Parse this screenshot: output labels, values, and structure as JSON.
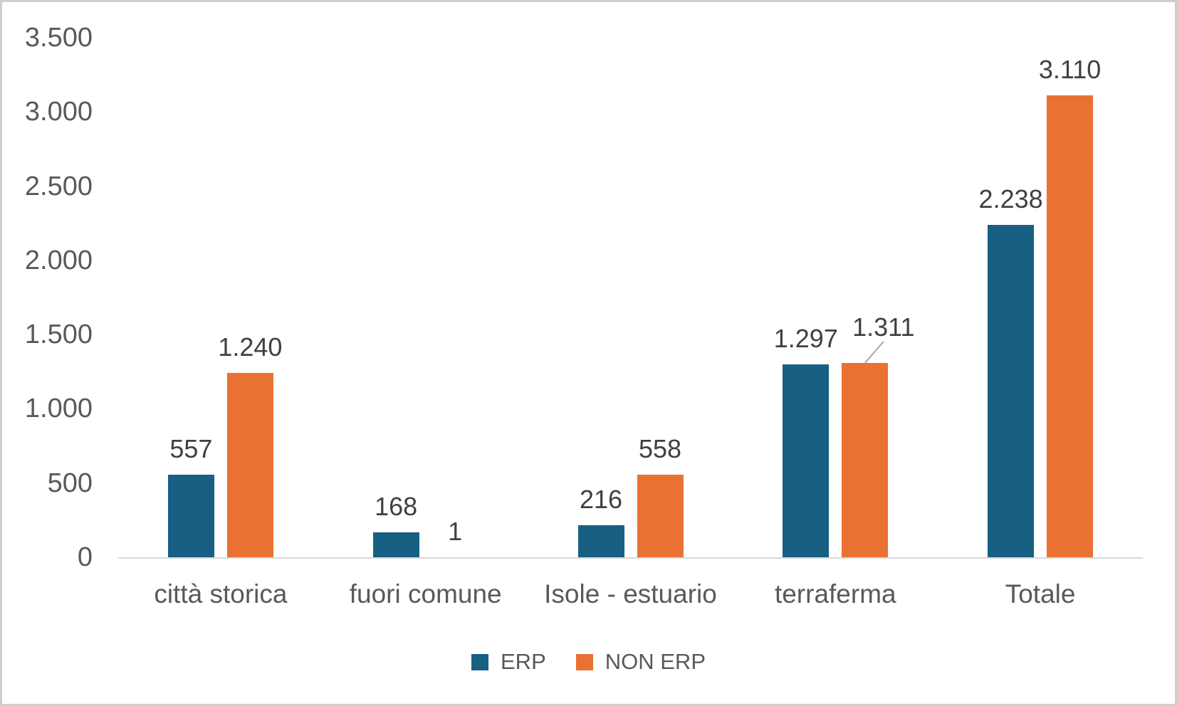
{
  "chart_data": {
    "type": "bar",
    "title": "",
    "categories": [
      "città storica",
      "fuori comune",
      "Isole - estuario",
      "terraferma",
      "Totale"
    ],
    "series": [
      {
        "name": "ERP",
        "color": "#176083",
        "values": [
          557,
          168,
          216,
          1297,
          2238
        ],
        "labels": [
          "557",
          "168",
          "216",
          "1.297",
          "2.238"
        ]
      },
      {
        "name": "NON ERP",
        "color": "#e97132",
        "values": [
          1240,
          1,
          558,
          1311,
          3110
        ],
        "labels": [
          "1.240",
          "1",
          "558",
          "1.311",
          "3.110"
        ]
      }
    ],
    "xlabel": "",
    "ylabel": "",
    "ylim": [
      0,
      3500
    ],
    "yticks": [
      {
        "value": 0,
        "label": "0"
      },
      {
        "value": 500,
        "label": "500"
      },
      {
        "value": 1000,
        "label": "1.000"
      },
      {
        "value": 1500,
        "label": "1.500"
      },
      {
        "value": 2000,
        "label": "2.000"
      },
      {
        "value": 2500,
        "label": "2.500"
      },
      {
        "value": 3000,
        "label": "3.000"
      },
      {
        "value": 3500,
        "label": "3.500"
      }
    ],
    "grid": false,
    "legend_position": "bottom",
    "legend_entries": [
      "ERP",
      "NON ERP"
    ],
    "annotations": [
      {
        "type": "label-callout",
        "series_index": 1,
        "category_index": 3,
        "label": "1.311",
        "dx": 26,
        "dy": -14,
        "leader": true
      }
    ]
  },
  "styles": {
    "background": "#ffffff",
    "frame_border": "#d0cece",
    "axis_line": "#d9d9d9",
    "tick_text": "#595959",
    "category_text": "#595959",
    "value_text": "#404040",
    "legend_text": "#595959",
    "leader_line": "#a6a6a6"
  }
}
